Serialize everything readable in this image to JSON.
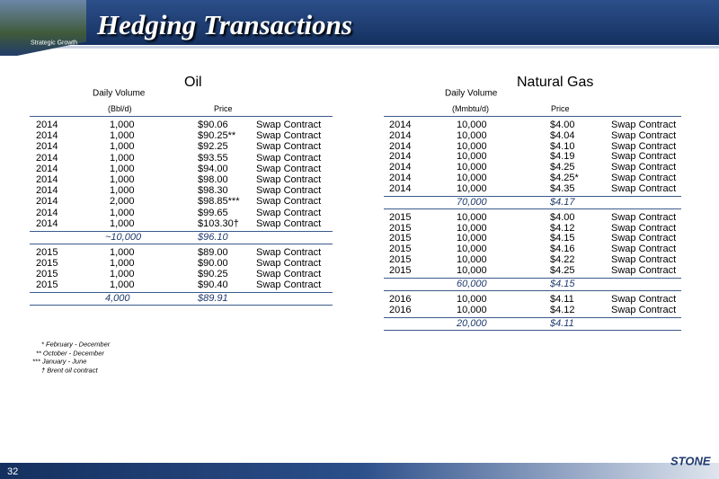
{
  "header": {
    "title": "Hedging Transactions",
    "logo_text": "Strategic Growth"
  },
  "oil": {
    "title": "Oil",
    "volume_header": "Daily Volume",
    "unit_header": "(Bbl/d)",
    "price_header": "Price",
    "groups": [
      {
        "rows": [
          [
            "2014",
            "1,000",
            "$90.06",
            "Swap Contract"
          ],
          [
            "2014",
            "1,000",
            "$90.25**",
            "Swap Contract"
          ],
          [
            "2014",
            "1,000",
            "$92.25",
            "Swap Contract"
          ],
          [
            "2014",
            "1,000",
            "$93.55",
            "Swap Contract"
          ],
          [
            "2014",
            "1,000",
            "$94.00",
            "Swap Contract"
          ],
          [
            "2014",
            "1,000",
            "$98.00",
            "Swap Contract"
          ],
          [
            "2014",
            "1,000",
            "$98.30",
            "Swap Contract"
          ],
          [
            "2014",
            "2,000",
            "$98.85***",
            "Swap Contract"
          ],
          [
            "2014",
            "1,000",
            "$99.65",
            "Swap Contract"
          ],
          [
            "2014",
            "1,000",
            "$103.30†",
            "Swap Contract"
          ]
        ],
        "total": [
          "~10,000",
          "$96.10"
        ]
      },
      {
        "rows": [
          [
            "2015",
            "1,000",
            "$89.00",
            "Swap Contract"
          ],
          [
            "2015",
            "1,000",
            "$90.00",
            "Swap Contract"
          ],
          [
            "2015",
            "1,000",
            "$90.25",
            "Swap Contract"
          ],
          [
            "2015",
            "1,000",
            "$90.40",
            "Swap Contract"
          ]
        ],
        "total": [
          "4,000",
          "$89.91"
        ]
      }
    ]
  },
  "gas": {
    "title": "Natural Gas",
    "volume_header": "Daily Volume",
    "unit_header": "(Mmbtu/d)",
    "price_header": "Price",
    "groups": [
      {
        "rows": [
          [
            "2014",
            "10,000",
            "$4.00",
            "Swap Contract"
          ],
          [
            "2014",
            "10,000",
            "$4.04",
            "Swap Contract"
          ],
          [
            "2014",
            "10,000",
            "$4.10",
            "Swap Contract"
          ],
          [
            "2014",
            "10,000",
            "$4.19",
            "Swap Contract"
          ],
          [
            "2014",
            "10,000",
            "$4.25",
            "Swap Contract"
          ],
          [
            "2014",
            "10,000",
            "$4.25*",
            "Swap Contract"
          ],
          [
            "2014",
            "10,000",
            "$4.35",
            "Swap Contract"
          ]
        ],
        "total": [
          "70,000",
          "$4.17"
        ]
      },
      {
        "rows": [
          [
            "2015",
            "10,000",
            "$4.00",
            "Swap Contract"
          ],
          [
            "2015",
            "10,000",
            "$4.12",
            "Swap Contract"
          ],
          [
            "2015",
            "10,000",
            "$4.15",
            "Swap Contract"
          ],
          [
            "2015",
            "10,000",
            "$4.16",
            "Swap Contract"
          ],
          [
            "2015",
            "10,000",
            "$4.22",
            "Swap Contract"
          ],
          [
            "2015",
            "10,000",
            "$4.25",
            "Swap Contract"
          ]
        ],
        "total": [
          "60,000",
          "$4.15"
        ]
      },
      {
        "rows": [
          [
            "2016",
            "10,000",
            "$4.11",
            "Swap Contract"
          ],
          [
            "2016",
            "10,000",
            "$4.12",
            "Swap Contract"
          ]
        ],
        "total": [
          "20,000",
          "$4.11"
        ]
      }
    ]
  },
  "footnotes": [
    "* February - December",
    "** October - December",
    "*** January - June",
    "† Brent oil contract"
  ],
  "footer": {
    "page": "32",
    "logo": "STONE"
  }
}
